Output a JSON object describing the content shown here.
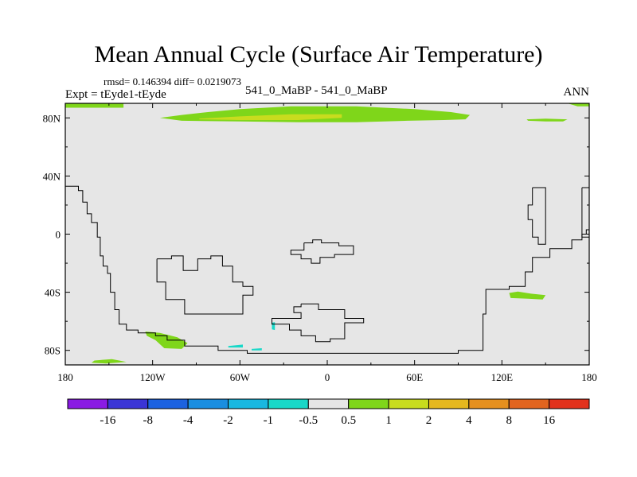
{
  "chart_data": {
    "type": "heatmap",
    "title": "Mean Annual Cycle (Surface Air Temperature)",
    "stats_text": "rmsd= 0.146394 diff= 0.0219073",
    "experiment_label": "Expt = tEyde1-tEyde",
    "case_label": "541_0_MaBP - 541_0_MaBP",
    "season_label": "ANN",
    "x_ticks": [
      "180",
      "120W",
      "60W",
      "0",
      "60E",
      "120E",
      "180"
    ],
    "y_ticks": [
      "80N",
      "40N",
      "0",
      "40S",
      "80S"
    ],
    "lon_range": [
      -180,
      180
    ],
    "lat_range": [
      -90,
      90
    ],
    "colorbar": {
      "labels": [
        "-16",
        "-8",
        "-4",
        "-2",
        "-1",
        "-0.5",
        "0.5",
        "1",
        "2",
        "4",
        "8",
        "16"
      ],
      "colors": [
        "#8a1be3",
        "#3b35d6",
        "#1c62e0",
        "#1a8ee0",
        "#19b8e0",
        "#19d8c8",
        "#e6e6e6",
        "#7fd61a",
        "#c8dc1e",
        "#e6b81e",
        "#e6901e",
        "#e2641e",
        "#e2321c"
      ]
    },
    "background_color": "#e6e6e6",
    "anomaly_regions": [
      {
        "name": "arctic-north-band",
        "level": "0.5 to 1",
        "color": "#7fd61a",
        "poly": [
          [
            -180,
            90
          ],
          [
            -140,
            90
          ],
          [
            -140,
            87
          ],
          [
            -180,
            87
          ]
        ]
      },
      {
        "name": "arctic-siberia-band",
        "level": "0.5 to 1",
        "color": "#7fd61a",
        "poly": [
          [
            95,
            90
          ],
          [
            165,
            90
          ],
          [
            172,
            88
          ],
          [
            180,
            88
          ],
          [
            180,
            90
          ],
          [
            165,
            90
          ]
        ]
      },
      {
        "name": "north-polar-anomaly",
        "level": "0.5 to 1",
        "color": "#7fd61a",
        "poly": [
          [
            -115,
            80
          ],
          [
            -100,
            82
          ],
          [
            -82,
            84
          ],
          [
            -60,
            86
          ],
          [
            -25,
            88
          ],
          [
            20,
            88
          ],
          [
            60,
            86
          ],
          [
            85,
            84
          ],
          [
            98,
            82
          ],
          [
            95,
            79
          ],
          [
            80,
            78.5
          ],
          [
            55,
            78
          ],
          [
            20,
            77
          ],
          [
            -20,
            77
          ],
          [
            -60,
            77.5
          ],
          [
            -100,
            78
          ]
        ]
      },
      {
        "name": "north-polar-core",
        "level": "1 to 2",
        "color": "#c8dc1e",
        "poly": [
          [
            -88,
            79.5
          ],
          [
            -60,
            81
          ],
          [
            -25,
            82.5
          ],
          [
            10,
            82.5
          ],
          [
            10,
            80
          ],
          [
            -20,
            78.5
          ],
          [
            -60,
            78.5
          ],
          [
            -88,
            79
          ]
        ]
      },
      {
        "name": "north-east-patch",
        "level": "0.5 to 1",
        "color": "#7fd61a",
        "poly": [
          [
            137,
            79
          ],
          [
            150,
            79.5
          ],
          [
            165,
            79
          ],
          [
            162,
            77.5
          ],
          [
            150,
            77.5
          ],
          [
            138,
            78
          ]
        ]
      },
      {
        "name": "southwest-pacific-patch",
        "level": "0.5 to 1",
        "color": "#7fd61a",
        "poly": [
          [
            125,
            -40.5
          ],
          [
            131,
            -39.5
          ],
          [
            140,
            -41
          ],
          [
            150,
            -42
          ],
          [
            148,
            -45
          ],
          [
            138,
            -44.5
          ],
          [
            126,
            -44
          ]
        ]
      },
      {
        "name": "south-america-coast-patch",
        "level": "0.5 to 1",
        "color": "#7fd61a",
        "poly": [
          [
            -125,
            -67
          ],
          [
            -115,
            -68
          ],
          [
            -103,
            -71
          ],
          [
            -96,
            -75
          ],
          [
            -100,
            -79
          ],
          [
            -112,
            -78.5
          ],
          [
            -118,
            -73
          ],
          [
            -124,
            -70
          ]
        ]
      },
      {
        "name": "antarctic-coast-patch",
        "level": "0.5 to 1",
        "color": "#7fd61a",
        "poly": [
          [
            -160,
            -87
          ],
          [
            -148,
            -86
          ],
          [
            -138,
            -88
          ],
          [
            -152,
            -89
          ],
          [
            -162,
            -88.5
          ]
        ]
      },
      {
        "name": "antarctic-coast-cool-1",
        "level": "-1 to -0.5",
        "color": "#19d8c8",
        "poly": [
          [
            -68,
            -77
          ],
          [
            -58,
            -76
          ],
          [
            -58,
            -78
          ],
          [
            -68,
            -78
          ]
        ]
      },
      {
        "name": "antarctic-coast-cool-2",
        "level": "-1 to -0.5",
        "color": "#19d8c8",
        "poly": [
          [
            -52,
            -79
          ],
          [
            -45,
            -78.5
          ],
          [
            -45,
            -80
          ],
          [
            -52,
            -80
          ]
        ]
      },
      {
        "name": "weddell-cool-spot",
        "level": "-1 to -0.5",
        "color": "#19d8c8",
        "poly": [
          [
            -38,
            -61
          ],
          [
            -36,
            -60.5
          ],
          [
            -36,
            -66
          ],
          [
            -38,
            -65.5
          ]
        ]
      }
    ],
    "coastlines": [
      [
        [
          -180,
          33
        ],
        [
          -171,
          33
        ],
        [
          -171,
          30
        ],
        [
          -168,
          30
        ],
        [
          -168,
          22
        ],
        [
          -165,
          22
        ],
        [
          -165,
          14
        ],
        [
          -162,
          14
        ],
        [
          -162,
          8
        ],
        [
          -158,
          8
        ],
        [
          -158,
          -2
        ],
        [
          -156,
          -2
        ],
        [
          -156,
          -15
        ],
        [
          -154,
          -15
        ],
        [
          -154,
          -22
        ],
        [
          -151,
          -22
        ],
        [
          -151,
          -27
        ],
        [
          -149,
          -27
        ],
        [
          -149,
          -40
        ],
        [
          -146,
          -40
        ],
        [
          -146,
          -52
        ],
        [
          -143,
          -52
        ],
        [
          -143,
          -62
        ],
        [
          -138,
          -62
        ],
        [
          -138,
          -66
        ],
        [
          -130,
          -66
        ],
        [
          -130,
          -68
        ],
        [
          -118,
          -68
        ],
        [
          -118,
          -70
        ],
        [
          -110,
          -70
        ],
        [
          -110,
          -73
        ],
        [
          -98,
          -73
        ],
        [
          -98,
          -77
        ],
        [
          -75,
          -77
        ],
        [
          -75,
          -80
        ],
        [
          -55,
          -80
        ],
        [
          -55,
          -82
        ],
        [
          90,
          -82
        ],
        [
          90,
          -80
        ],
        [
          107,
          -80
        ],
        [
          107,
          -55
        ],
        [
          109,
          -55
        ],
        [
          109,
          -38
        ],
        [
          125,
          -38
        ],
        [
          125,
          -36
        ],
        [
          136,
          -36
        ],
        [
          136,
          -26
        ],
        [
          141,
          -26
        ],
        [
          141,
          -16
        ],
        [
          153,
          -16
        ],
        [
          153,
          -10
        ],
        [
          168,
          -10
        ],
        [
          168,
          -4
        ],
        [
          175,
          -4
        ],
        [
          175,
          0
        ],
        [
          178,
          0
        ],
        [
          178,
          3
        ],
        [
          180,
          3
        ]
      ],
      [
        [
          -117,
          -17
        ],
        [
          -107,
          -17
        ],
        [
          -107,
          -15
        ],
        [
          -99,
          -15
        ],
        [
          -99,
          -25
        ],
        [
          -89,
          -25
        ],
        [
          -89,
          -17
        ],
        [
          -80,
          -17
        ],
        [
          -80,
          -15
        ],
        [
          -72,
          -15
        ],
        [
          -72,
          -22
        ],
        [
          -65,
          -22
        ],
        [
          -65,
          -33
        ],
        [
          -58,
          -33
        ],
        [
          -58,
          -36
        ],
        [
          -51,
          -36
        ],
        [
          -51,
          -42
        ],
        [
          -58,
          -42
        ],
        [
          -58,
          -55
        ],
        [
          -98,
          -55
        ],
        [
          -98,
          -45
        ],
        [
          -111,
          -45
        ],
        [
          -111,
          -33
        ],
        [
          -117,
          -33
        ],
        [
          -117,
          -17
        ]
      ],
      [
        [
          -16,
          -6
        ],
        [
          -10,
          -6
        ],
        [
          -10,
          -4
        ],
        [
          -4,
          -4
        ],
        [
          -4,
          -6
        ],
        [
          8,
          -6
        ],
        [
          8,
          -8
        ],
        [
          18,
          -8
        ],
        [
          18,
          -14
        ],
        [
          5,
          -14
        ],
        [
          5,
          -16
        ],
        [
          -5,
          -16
        ],
        [
          -5,
          -20
        ],
        [
          -11,
          -20
        ],
        [
          -11,
          -17
        ],
        [
          -18,
          -17
        ],
        [
          -18,
          -14
        ],
        [
          -25,
          -14
        ],
        [
          -25,
          -11
        ],
        [
          -16,
          -11
        ],
        [
          -16,
          -6
        ]
      ],
      [
        [
          -18,
          -48
        ],
        [
          -6,
          -48
        ],
        [
          -6,
          -52
        ],
        [
          12,
          -52
        ],
        [
          12,
          -58
        ],
        [
          25,
          -58
        ],
        [
          25,
          -61
        ],
        [
          12,
          -61
        ],
        [
          12,
          -72
        ],
        [
          2,
          -72
        ],
        [
          2,
          -74
        ],
        [
          -8,
          -74
        ],
        [
          -8,
          -70
        ],
        [
          -18,
          -70
        ],
        [
          -18,
          -66
        ],
        [
          -26,
          -66
        ],
        [
          -26,
          -62
        ],
        [
          -38,
          -62
        ],
        [
          -38,
          -58
        ],
        [
          -18,
          -58
        ],
        [
          -18,
          -54
        ],
        [
          -23,
          -54
        ],
        [
          -23,
          -50
        ],
        [
          -18,
          -50
        ],
        [
          -18,
          -48
        ]
      ],
      [
        [
          141,
          32
        ],
        [
          150,
          32
        ],
        [
          150,
          -7
        ],
        [
          145,
          -7
        ],
        [
          145,
          -2
        ],
        [
          141,
          -2
        ],
        [
          141,
          10
        ],
        [
          138,
          10
        ],
        [
          138,
          20
        ],
        [
          141,
          20
        ],
        [
          141,
          32
        ]
      ],
      [
        [
          175,
          32
        ],
        [
          180,
          32
        ]
      ],
      [
        [
          175,
          32
        ],
        [
          175,
          -2
        ],
        [
          180,
          -2
        ]
      ]
    ]
  }
}
